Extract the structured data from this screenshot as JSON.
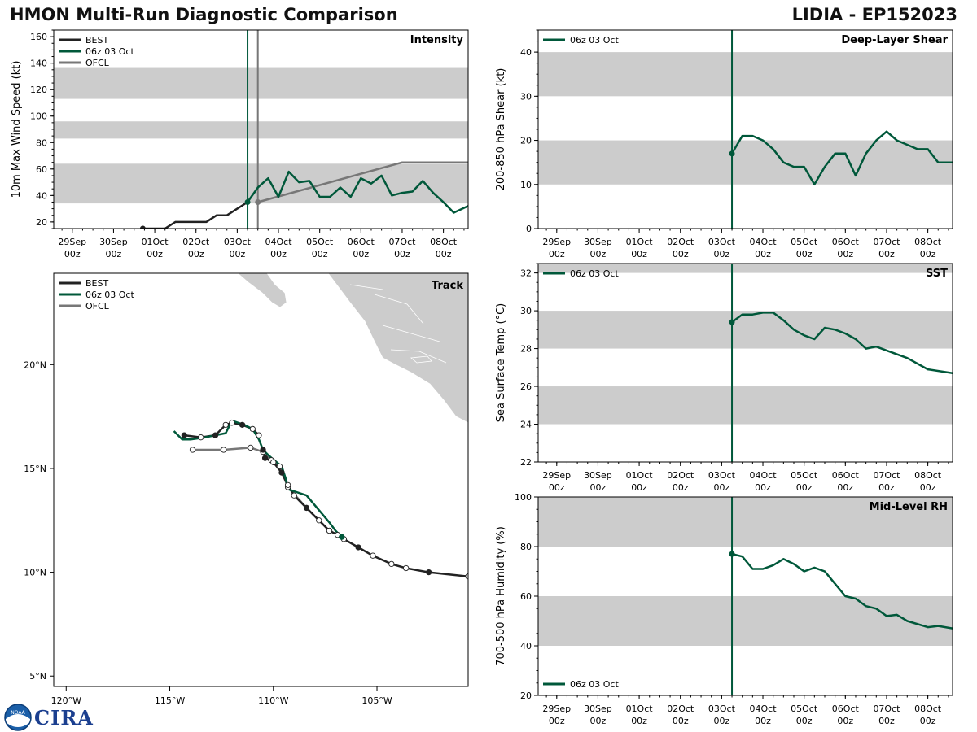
{
  "header": {
    "title_left": "HMON Multi-Run Diagnostic Comparison",
    "title_right": "LIDIA - EP152023"
  },
  "logo": {
    "text": "CIRA",
    "icon": "noaa-logo-icon",
    "mark": "NOAA"
  },
  "colors": {
    "best": "#222222",
    "run": "#00583a",
    "ofcl": "#777777",
    "band": "#cccccc",
    "land": "#cccccc",
    "marker_white": "#ffffff"
  },
  "time_axis": {
    "ticks": [
      {
        "day": 0,
        "l1": "29Sep",
        "l2": "00z"
      },
      {
        "day": 1,
        "l1": "30Sep",
        "l2": "00z"
      },
      {
        "day": 2,
        "l1": "01Oct",
        "l2": "00z"
      },
      {
        "day": 3,
        "l1": "02Oct",
        "l2": "00z"
      },
      {
        "day": 4,
        "l1": "03Oct",
        "l2": "00z"
      },
      {
        "day": 5,
        "l1": "04Oct",
        "l2": "00z"
      },
      {
        "day": 6,
        "l1": "05Oct",
        "l2": "00z"
      },
      {
        "day": 7,
        "l1": "06Oct",
        "l2": "00z"
      },
      {
        "day": 8,
        "l1": "07Oct",
        "l2": "00z"
      },
      {
        "day": 9,
        "l1": "08Oct",
        "l2": "00z"
      }
    ],
    "range_days": [
      -0.45,
      9.6
    ],
    "init_day": 4.25,
    "ofcl_day": 4.5
  },
  "chart_data": [
    {
      "id": "intensity",
      "type": "line",
      "title": "Intensity",
      "ylabel": "10m Max Wind Speed (kt)",
      "ylim": [
        15,
        165
      ],
      "yticks": [
        20,
        40,
        60,
        80,
        100,
        120,
        140,
        160
      ],
      "bands": [
        [
          34,
          64
        ],
        [
          83,
          96
        ],
        [
          113,
          137
        ]
      ],
      "legend": [
        "BEST",
        "06z 03 Oct",
        "OFCL"
      ],
      "series": [
        {
          "name": "BEST",
          "x": [
            1.71,
            2,
            2.25,
            2.5,
            2.75,
            3,
            3.25,
            3.5,
            3.75,
            4,
            4.25
          ],
          "y": [
            15,
            15,
            15,
            20,
            20,
            20,
            20,
            25,
            25,
            30,
            35
          ]
        },
        {
          "name": "06z 03 Oct",
          "x": [
            4.25,
            4.5,
            4.75,
            5,
            5.25,
            5.5,
            5.75,
            6,
            6.25,
            6.5,
            6.75,
            7,
            7.25,
            7.5,
            7.75,
            8,
            8.25,
            8.5,
            8.75,
            9,
            9.25,
            9.6
          ],
          "y": [
            35,
            46,
            53,
            39,
            58,
            50,
            51,
            39,
            39,
            46,
            39,
            53,
            49,
            55,
            40,
            42,
            43,
            51,
            42,
            35,
            27,
            32
          ]
        },
        {
          "name": "OFCL",
          "x": [
            4.5,
            8.0,
            8.5,
            9.6
          ],
          "y": [
            35,
            65,
            65,
            65
          ]
        }
      ]
    },
    {
      "id": "shear",
      "type": "line",
      "title": "Deep-Layer Shear",
      "ylabel": "200-850 hPa Shear (kt)",
      "ylim": [
        0,
        45
      ],
      "yticks": [
        0,
        10,
        20,
        30,
        40
      ],
      "bands": [
        [
          10,
          20
        ],
        [
          30,
          40
        ]
      ],
      "legend": [
        "06z 03 Oct"
      ],
      "series": [
        {
          "name": "06z 03 Oct",
          "x": [
            4.25,
            4.5,
            4.75,
            5,
            5.25,
            5.5,
            5.75,
            6,
            6.25,
            6.5,
            6.75,
            7,
            7.25,
            7.5,
            7.75,
            8,
            8.25,
            8.5,
            8.75,
            9,
            9.25,
            9.6
          ],
          "y": [
            17,
            21,
            21,
            20,
            18,
            15,
            14,
            14,
            10,
            14,
            17,
            17,
            12,
            17,
            20,
            22,
            20,
            19,
            18,
            18,
            15,
            15
          ]
        }
      ]
    },
    {
      "id": "sst",
      "type": "line",
      "title": "SST",
      "ylabel": "Sea Surface Temp (°C)",
      "ylim": [
        22,
        32.5
      ],
      "yticks": [
        22,
        24,
        26,
        28,
        30,
        32
      ],
      "bands": [
        [
          24,
          26
        ],
        [
          28,
          30
        ],
        [
          32,
          32.5
        ]
      ],
      "legend": [
        "06z 03 Oct"
      ],
      "series": [
        {
          "name": "06z 03 Oct",
          "x": [
            4.25,
            4.5,
            4.75,
            5,
            5.25,
            5.5,
            5.75,
            6,
            6.25,
            6.5,
            6.75,
            7,
            7.25,
            7.5,
            7.75,
            8,
            8.5,
            9,
            9.6
          ],
          "y": [
            29.4,
            29.8,
            29.8,
            29.9,
            29.9,
            29.5,
            29.0,
            28.7,
            28.5,
            29.1,
            29.0,
            28.8,
            28.5,
            28.0,
            28.1,
            27.9,
            27.5,
            26.9,
            26.7
          ]
        }
      ]
    },
    {
      "id": "rh",
      "type": "line",
      "title": "Mid-Level RH",
      "ylabel": "700-500 hPa Humidity (%)",
      "ylim": [
        20,
        100
      ],
      "yticks": [
        20,
        40,
        60,
        80,
        100
      ],
      "bands": [
        [
          40,
          60
        ],
        [
          80,
          100
        ]
      ],
      "legend": [
        "06z 03 Oct"
      ],
      "series": [
        {
          "name": "06z 03 Oct",
          "x": [
            4.25,
            4.5,
            4.75,
            5,
            5.25,
            5.5,
            5.75,
            6,
            6.25,
            6.5,
            7,
            7.25,
            7.5,
            7.75,
            8,
            8.25,
            8.5,
            9,
            9.25,
            9.6
          ],
          "y": [
            77,
            76,
            71,
            71,
            72.5,
            75,
            73,
            70,
            71.5,
            70,
            60,
            59,
            56,
            55,
            52,
            52.5,
            50,
            47.5,
            48,
            47
          ]
        }
      ]
    },
    {
      "id": "track",
      "type": "scatter",
      "title": "Track",
      "xlim": [
        -120.6,
        -100.6
      ],
      "ylim": [
        4.5,
        24.4
      ],
      "xticks": [
        {
          "v": -120,
          "label": "120°W"
        },
        {
          "v": -115,
          "label": "115°W"
        },
        {
          "v": -110,
          "label": "110°W"
        },
        {
          "v": -105,
          "label": "105°W"
        }
      ],
      "yticks": [
        {
          "v": 5,
          "label": "5°N"
        },
        {
          "v": 10,
          "label": "10°N"
        },
        {
          "v": 15,
          "label": "15°N"
        },
        {
          "v": 20,
          "label": "20°N"
        }
      ],
      "legend": [
        "BEST",
        "06z 03 Oct",
        "OFCL"
      ],
      "series": [
        {
          "name": "BEST",
          "lon": [
            -100.6,
            -102.5,
            -103.6,
            -104.3,
            -105.2,
            -105.9,
            -106.6,
            -106.9,
            -107.3,
            -107.8,
            -108.4,
            -109.0,
            -109.3,
            -109.6,
            -110.0,
            -110.4,
            -110.5
          ],
          "lat": [
            9.8,
            10.0,
            10.2,
            10.4,
            10.8,
            11.2,
            11.6,
            11.8,
            12.0,
            12.5,
            13.1,
            13.7,
            14.2,
            14.8,
            15.3,
            15.5,
            15.9
          ],
          "filled": [
            false,
            true,
            false,
            false,
            false,
            true,
            false,
            false,
            false,
            false,
            true,
            false,
            false,
            true,
            false,
            true,
            true
          ]
        },
        {
          "name": "06z 03 Oct",
          "lon": [
            -106.7,
            -107.0,
            -107.3,
            -108.4,
            -109.3,
            -109.4,
            -109.6,
            -110.2,
            -110.5,
            -110.7,
            -111.0,
            -111.4,
            -112.0,
            -112.3,
            -112.8,
            -113.3,
            -114.0,
            -114.4,
            -114.8
          ],
          "lat": [
            11.7,
            12.0,
            12.4,
            13.7,
            14.0,
            14.5,
            15.1,
            15.6,
            15.9,
            16.4,
            16.9,
            17.1,
            17.3,
            16.7,
            16.6,
            16.5,
            16.4,
            16.4,
            16.8
          ],
          "filled": [
            true
          ]
        },
        {
          "name": "OFCL",
          "lon": [
            -107.3,
            -108.4,
            -109.3,
            -109.7,
            -110.1,
            -110.5,
            -111.1,
            -112.4,
            -113.9
          ],
          "lat": [
            12.0,
            13.1,
            14.1,
            15.1,
            15.4,
            15.8,
            16.0,
            15.9,
            15.9
          ],
          "filled": [
            true,
            false,
            false,
            false,
            false,
            false,
            false,
            false,
            false
          ]
        },
        {
          "name": "BEST-early",
          "lon": [
            -110.7,
            -111.0,
            -111.5,
            -112.0,
            -112.3,
            -112.8,
            -113.5,
            -114.3
          ],
          "lat": [
            16.6,
            16.9,
            17.1,
            17.2,
            17.1,
            16.6,
            16.5,
            16.6
          ],
          "filled": [
            false,
            false,
            true,
            false,
            false,
            true,
            false,
            true
          ]
        }
      ]
    }
  ]
}
